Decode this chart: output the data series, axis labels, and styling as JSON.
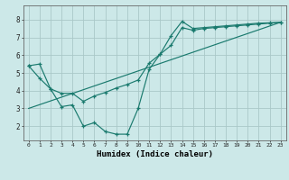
{
  "xlabel": "Humidex (Indice chaleur)",
  "bg_color": "#cce8e8",
  "grid_color": "#aac8c8",
  "line_color": "#1a7a6e",
  "xlim": [
    -0.5,
    23.5
  ],
  "ylim": [
    1.2,
    8.8
  ],
  "xticks": [
    0,
    1,
    2,
    3,
    4,
    5,
    6,
    7,
    8,
    9,
    10,
    11,
    12,
    13,
    14,
    15,
    16,
    17,
    18,
    19,
    20,
    21,
    22,
    23
  ],
  "yticks": [
    2,
    3,
    4,
    5,
    6,
    7,
    8
  ],
  "line1_x": [
    0,
    1,
    2,
    3,
    4,
    5,
    6,
    7,
    8,
    9,
    10,
    11,
    12,
    13,
    14,
    15,
    16,
    17,
    18,
    19,
    20,
    21,
    22,
    23
  ],
  "line1_y": [
    5.4,
    5.5,
    4.1,
    3.1,
    3.2,
    2.0,
    2.2,
    1.7,
    1.55,
    1.55,
    3.0,
    5.2,
    6.05,
    7.1,
    7.9,
    7.5,
    7.55,
    7.6,
    7.65,
    7.7,
    7.75,
    7.8,
    7.82,
    7.85
  ],
  "line2_x": [
    0,
    1,
    2,
    3,
    4,
    5,
    6,
    7,
    8,
    9,
    10,
    11,
    12,
    13,
    14,
    15,
    16,
    17,
    18,
    19,
    20,
    21,
    22,
    23
  ],
  "line2_y": [
    5.4,
    4.7,
    4.1,
    3.85,
    3.85,
    3.4,
    3.7,
    3.9,
    4.15,
    4.35,
    4.6,
    5.55,
    6.05,
    6.55,
    7.55,
    7.4,
    7.5,
    7.55,
    7.6,
    7.65,
    7.7,
    7.75,
    7.8,
    7.85
  ],
  "line3_x": [
    0,
    23
  ],
  "line3_y": [
    3.0,
    7.85
  ]
}
